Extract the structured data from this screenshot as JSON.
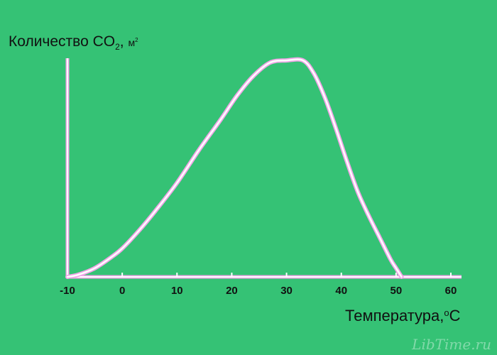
{
  "chart_data": {
    "type": "line",
    "ylabel": {
      "prefix": "Количество CO",
      "subscript": "2",
      "separator": ", ",
      "unit": "м",
      "unit_superscript": "2"
    },
    "xlabel": {
      "prefix": "Температура,",
      "degree": "o",
      "unit": "C"
    },
    "x_ticks": [
      "-10",
      "0",
      "10",
      "20",
      "30",
      "40",
      "50",
      "60"
    ],
    "xlim": [
      -10,
      62
    ],
    "ylim": [
      0,
      100
    ],
    "grid": false,
    "series": [
      {
        "x": [
          -10,
          -8,
          -5,
          -2,
          0,
          3,
          6,
          10,
          14,
          18,
          21,
          24,
          27,
          30,
          33,
          35,
          37,
          39,
          41,
          43,
          45,
          47,
          49,
          50,
          51
        ],
        "y": [
          0,
          1,
          4,
          9,
          13,
          21,
          30,
          43,
          58,
          72,
          83,
          92,
          98,
          99,
          99,
          93,
          82,
          68,
          53,
          39,
          28,
          18,
          8,
          4,
          0
        ]
      }
    ],
    "line_color": "#ffffff",
    "line_glow_color": "#f2a6e8"
  },
  "watermark": "LibTime.ru"
}
